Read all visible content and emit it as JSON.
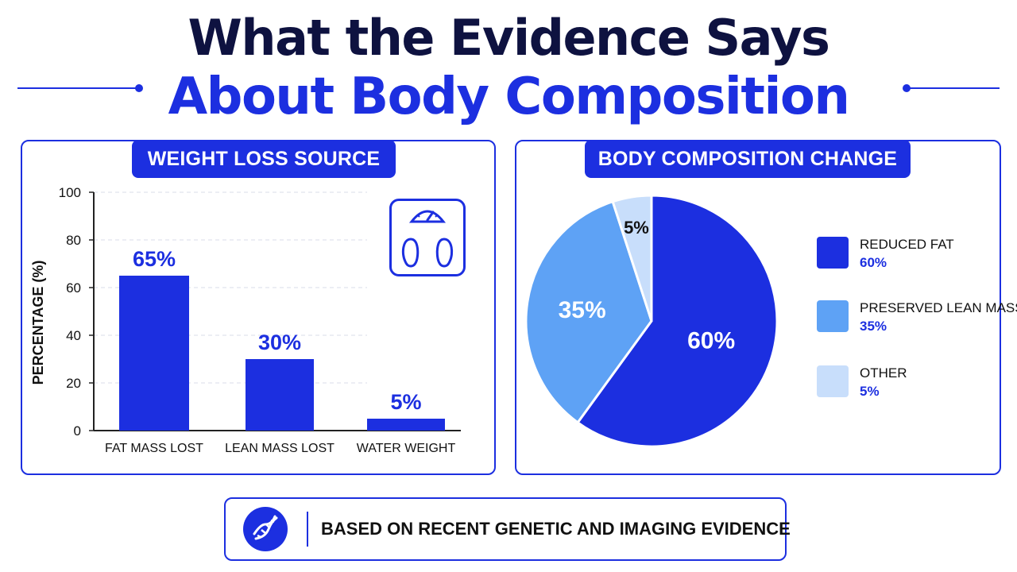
{
  "header": {
    "title_line1": "What the Evidence Says",
    "title_line2": "About Body Composition"
  },
  "colors": {
    "primary": "#1c2fe0",
    "dark_text": "#0e1240",
    "lean_mass": "#5ea2f5",
    "other": "#c8defb"
  },
  "icons": {
    "scale": "bathroom-scale-icon",
    "dna": "dna-icon"
  },
  "chart_data": [
    {
      "type": "bar",
      "title": "WEIGHT LOSS SOURCE",
      "categories": [
        "FAT MASS LOST",
        "LEAN MASS LOST",
        "WATER WEIGHT"
      ],
      "values": [
        65,
        30,
        5
      ],
      "data_labels": [
        "65%",
        "30%",
        "5%"
      ],
      "ylabel": "PERCENTAGE (%)",
      "ylim": [
        0,
        100
      ],
      "yticks": [
        0,
        20,
        40,
        60,
        80,
        100
      ],
      "grid": true
    },
    {
      "type": "pie",
      "title": "BODY COMPOSITION CHANGE",
      "categories": [
        "REDUCED FAT",
        "PRESERVED LEAN MASS",
        "OTHER"
      ],
      "values": [
        60,
        35,
        5
      ],
      "data_labels": [
        "60%",
        "35%",
        "5%"
      ],
      "legend_position": "right"
    }
  ],
  "footer": {
    "text": "BASED ON RECENT GENETIC AND IMAGING EVIDENCE"
  }
}
